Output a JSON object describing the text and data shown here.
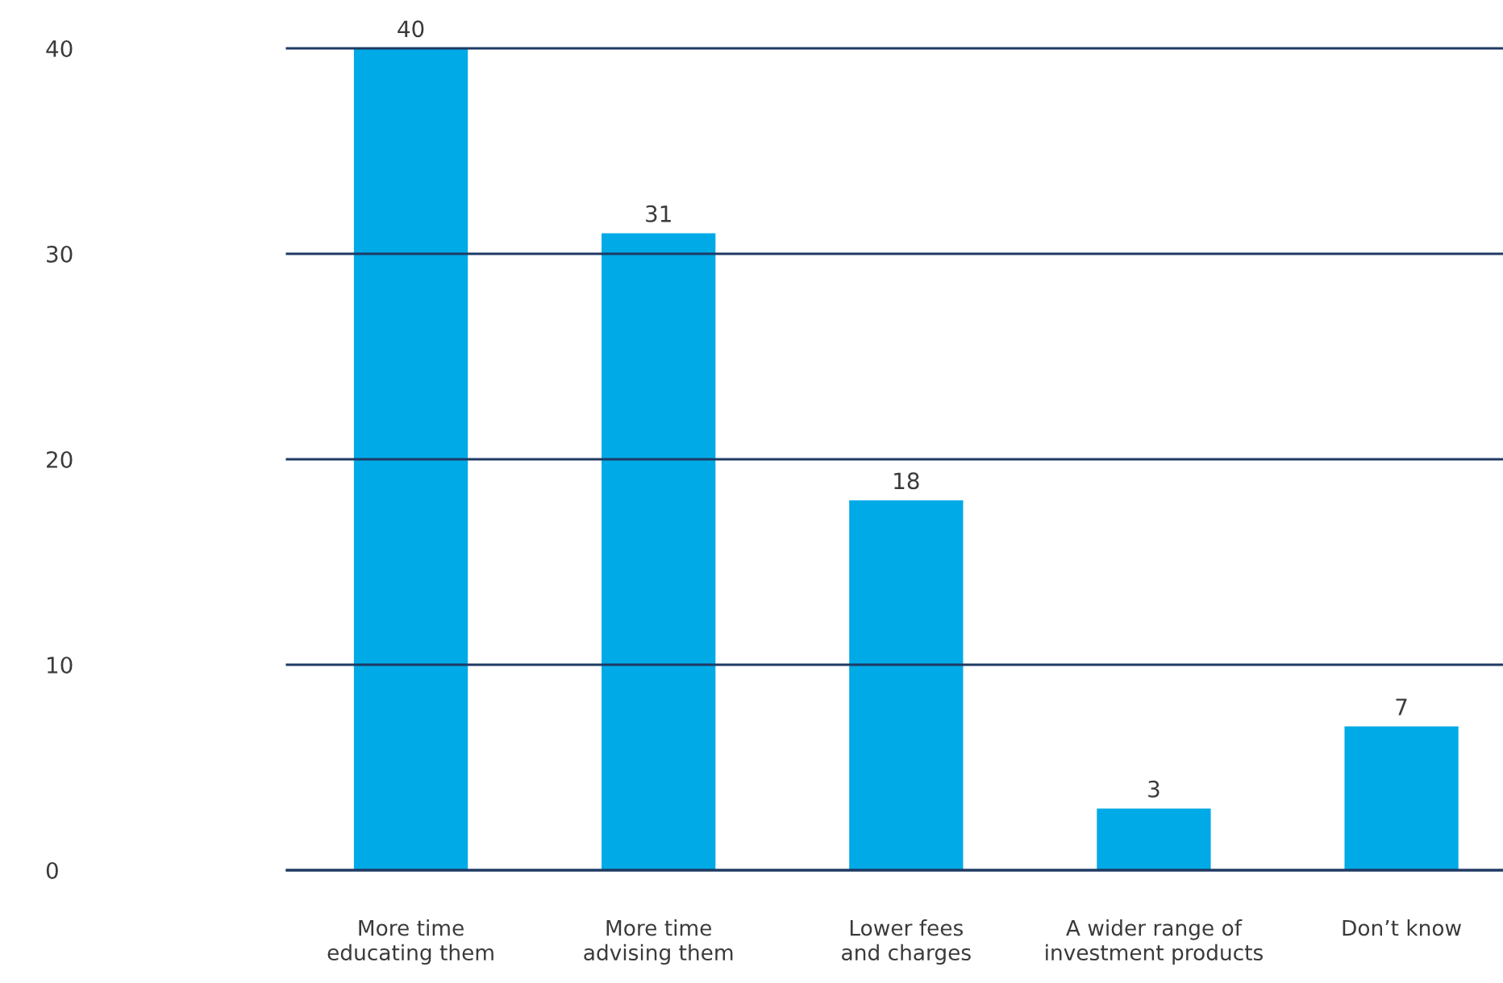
{
  "chart_data": {
    "type": "bar",
    "categories": [
      "More time\neducating them",
      "More time\nadvising them",
      "Lower fees\nand charges",
      "A wider range of\ninvestment products",
      "Don’t know"
    ],
    "values": [
      40,
      31,
      18,
      3,
      7
    ],
    "color": "#00aae6",
    "ylim": [
      0,
      40
    ],
    "yticks": [
      0,
      10,
      20,
      30,
      40
    ],
    "grid": "y",
    "data_labels": true
  }
}
